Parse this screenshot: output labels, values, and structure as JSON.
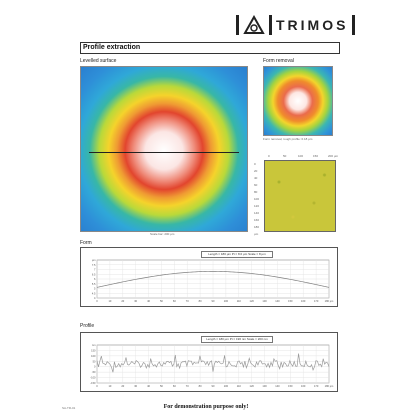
{
  "brand": {
    "name": "TRIMOS"
  },
  "report": {
    "title": "Profile extraction",
    "levelled_label": "Levelled surface",
    "form_removal_label": "Form removal",
    "form_label": "Form",
    "profile_label": "Profile",
    "scale_caption": "Scale bar: 200 µm",
    "removal_caption": "Form removal, rough profile: 0.18 µm"
  },
  "roughness_map": {
    "x_ticks": [
      "0",
      "50",
      "100",
      "150",
      "200 µm"
    ],
    "y_ticks": [
      "0",
      "20",
      "40",
      "60",
      "80",
      "100",
      "120",
      "140",
      "160",
      "180",
      "µm"
    ]
  },
  "form_chart": {
    "legend": "Length = 180 µm  Pt = 8.0 µm  Scale = 8 µm",
    "y_ticks": [
      "µm",
      "7.5",
      "7",
      "6.5",
      "6",
      "5.5",
      "5",
      "4.5",
      "4"
    ],
    "x_ticks": [
      "0",
      "10",
      "20",
      "30",
      "40",
      "50",
      "60",
      "70",
      "80",
      "90",
      "100",
      "110",
      "120",
      "130",
      "140",
      "150",
      "160",
      "170",
      "180 µm"
    ]
  },
  "profile_chart": {
    "legend": "Length = 180 µm  Pt = 196 nm  Scale = 200 nm",
    "y_ticks": [
      "nm",
      "150",
      "100",
      "50",
      "0",
      "-50",
      "-100",
      "-150"
    ],
    "x_ticks": [
      "0",
      "10",
      "20",
      "30",
      "40",
      "50",
      "60",
      "70",
      "80",
      "90",
      "100",
      "110",
      "120",
      "130",
      "140",
      "150",
      "160",
      "170",
      "180 µm"
    ]
  },
  "footer": {
    "notice": "For demonstration purpose only!",
    "code": "SA-TR-01"
  },
  "colors": {
    "ink": "#222222",
    "form_curve": "#7f7f7f",
    "profile_curve": "#9a9a9a"
  }
}
